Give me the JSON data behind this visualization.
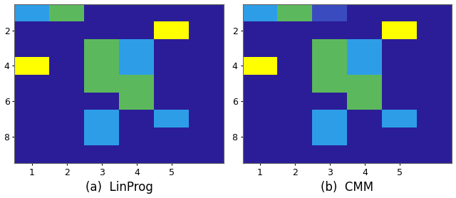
{
  "colors": {
    "bg": "#2b1d97",
    "cyan": "#2d9de8",
    "green": "#5cb85c",
    "yellow": "#ffff00",
    "med_blue": "#3a4bbf"
  },
  "linprog": [
    [
      1,
      2,
      0,
      0,
      0,
      0
    ],
    [
      0,
      0,
      0,
      0,
      3,
      0
    ],
    [
      0,
      0,
      2,
      1,
      0,
      0
    ],
    [
      3,
      0,
      2,
      1,
      0,
      0
    ],
    [
      0,
      0,
      2,
      2,
      0,
      0
    ],
    [
      0,
      0,
      0,
      2,
      0,
      0
    ],
    [
      0,
      0,
      1,
      0,
      1,
      0
    ],
    [
      0,
      0,
      1,
      0,
      0,
      0
    ],
    [
      0,
      0,
      0,
      0,
      0,
      0
    ]
  ],
  "cmm": [
    [
      1,
      2,
      4,
      0,
      0,
      0
    ],
    [
      0,
      0,
      0,
      0,
      3,
      0
    ],
    [
      0,
      0,
      2,
      1,
      0,
      0
    ],
    [
      3,
      0,
      2,
      1,
      0,
      0
    ],
    [
      0,
      0,
      2,
      2,
      0,
      0
    ],
    [
      0,
      0,
      0,
      2,
      0,
      0
    ],
    [
      0,
      0,
      1,
      0,
      1,
      0
    ],
    [
      0,
      0,
      1,
      0,
      0,
      0
    ],
    [
      0,
      0,
      0,
      0,
      0,
      0
    ]
  ],
  "label_left": "(a)  LinProg",
  "label_right": "(b)  CMM",
  "label_fontsize": 12,
  "figsize": [
    6.4,
    2.78
  ],
  "dpi": 100,
  "nrows": 9,
  "ncols": 6
}
